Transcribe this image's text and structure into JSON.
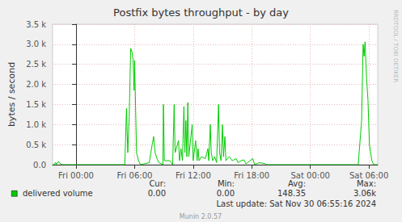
{
  "chart_data": {
    "type": "line",
    "title": "Postfix bytes throughput - by day",
    "y_label": "bytes / second",
    "xlim": [
      -2.4,
      30.9
    ],
    "xticks": [
      {
        "value": 0,
        "label": "Fri 00:00"
      },
      {
        "value": 6,
        "label": "Fri 06:00"
      },
      {
        "value": 12,
        "label": "Fri 12:00"
      },
      {
        "value": 18,
        "label": "Fri 18:00"
      },
      {
        "value": 24,
        "label": "Sat 00:00"
      },
      {
        "value": 30,
        "label": "Sat 06:00"
      }
    ],
    "ylim": [
      0,
      3500
    ],
    "yticks": [
      {
        "value": 0,
        "label": "0.0"
      },
      {
        "value": 500,
        "label": "0.5 k"
      },
      {
        "value": 1000,
        "label": "1.0 k"
      },
      {
        "value": 1500,
        "label": "1.5 k"
      },
      {
        "value": 2000,
        "label": "2.0 k"
      },
      {
        "value": 2500,
        "label": "2.5 k"
      },
      {
        "value": 3000,
        "label": "3.0 k"
      },
      {
        "value": 3500,
        "label": "3.5 k"
      }
    ],
    "grid": true,
    "series": [
      {
        "name": "delivered volume",
        "color": "#00CC00",
        "x": [
          -2.4,
          -2.2,
          -2.1,
          -2.0,
          -1.8,
          -1.6,
          -1.4,
          5.0,
          5.17,
          5.3,
          5.45,
          5.6,
          5.75,
          5.85,
          5.95,
          6.0,
          6.2,
          6.4,
          6.6,
          7.5,
          7.8,
          7.95,
          8.1,
          8.3,
          8.5,
          8.9,
          8.95,
          9.05,
          9.6,
          9.9,
          10.05,
          10.15,
          10.5,
          10.6,
          10.75,
          10.9,
          11.05,
          11.15,
          11.25,
          11.35,
          11.45,
          11.55,
          11.9,
          12.0,
          12.25,
          12.4,
          12.5,
          12.6,
          12.85,
          13.25,
          13.5,
          13.6,
          13.75,
          13.85,
          14.0,
          14.2,
          14.4,
          14.6,
          14.7,
          14.85,
          15.0,
          15.1,
          15.25,
          15.35,
          15.7,
          16.0,
          16.4,
          16.6,
          16.9,
          17.2,
          17.4,
          18.1,
          18.3,
          18.75,
          19.3,
          19.5,
          28.9,
          29.25,
          29.4,
          29.5,
          29.6,
          29.75,
          29.9,
          30.05,
          30.3,
          30.5,
          30.9
        ],
        "values": [
          0,
          0,
          60,
          10,
          80,
          20,
          0,
          0,
          1400,
          300,
          1200,
          2900,
          2800,
          2600,
          1850,
          2600,
          300,
          100,
          0,
          50,
          500,
          700,
          300,
          150,
          50,
          0,
          1500,
          100,
          100,
          0,
          1500,
          300,
          600,
          100,
          400,
          100,
          1450,
          300,
          1100,
          200,
          1550,
          200,
          1000,
          100,
          600,
          100,
          400,
          100,
          200,
          150,
          400,
          100,
          1000,
          300,
          100,
          200,
          50,
          1500,
          300,
          100,
          1000,
          200,
          700,
          100,
          200,
          100,
          150,
          50,
          100,
          120,
          20,
          150,
          0,
          50,
          30,
          0,
          0,
          1100,
          3000,
          2700,
          3060,
          2200,
          1600,
          500,
          100,
          0,
          0
        ]
      }
    ],
    "summary": {
      "headers": [
        "Cur:",
        "Min:",
        "Avg:",
        "Max:"
      ],
      "values": [
        "0.00",
        "0.00",
        "148.35",
        "3.06k"
      ]
    },
    "last_update": "Last update: Sat Nov 30 06:55:16 2024",
    "footer": "Munin 2.0.57",
    "watermark": "RRDTOOL / TOBI OETIKER"
  }
}
